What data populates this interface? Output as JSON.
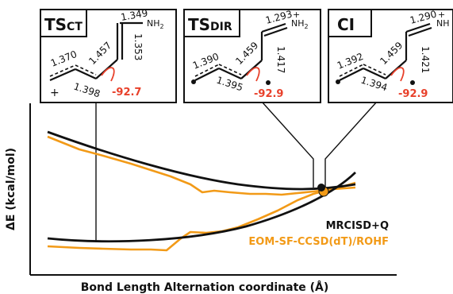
{
  "axes": {
    "ylabel": "ΔE (kcal/mol)",
    "xlabel": "Bond Length Alternation coordinate (Å)"
  },
  "legend": [
    {
      "name": "MRCISD+Q",
      "color": "#111111"
    },
    {
      "name": "EOM-SF-CCSD(dT)/ROHF",
      "color": "#f29a17"
    }
  ],
  "colors": {
    "frame": "#111111",
    "mrci": "#111111",
    "eom": "#f29a17",
    "dihedral": "#e8402a"
  },
  "panels": [
    {
      "title": "TS",
      "title_sub": "CT",
      "bonds": [
        "1.370",
        "1.398",
        "1.457",
        "1.349",
        "1.353"
      ],
      "terminal": "NH",
      "terminal_sub": "2",
      "terminal_charge": "",
      "dihedral": "-92.7",
      "charge": "+"
    },
    {
      "title": "TS",
      "title_sub": "DIR",
      "bonds": [
        "1.390",
        "1.395",
        "1.459",
        "1.293",
        "1.417"
      ],
      "terminal": "NH",
      "terminal_sub": "2",
      "terminal_charge": "+",
      "dihedral": "-92.9",
      "charge": ""
    },
    {
      "title": "CI",
      "title_sub": "",
      "bonds": [
        "1.392",
        "1.394",
        "1.459",
        "1.290",
        "1.421"
      ],
      "terminal": "NH",
      "terminal_sub": "",
      "terminal_charge": "+",
      "dihedral": "-92.9",
      "charge": ""
    }
  ]
}
